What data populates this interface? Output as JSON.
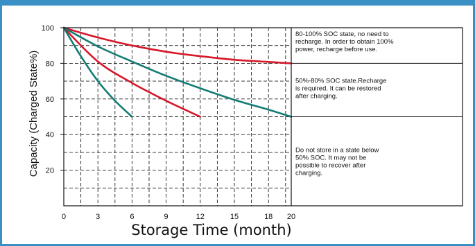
{
  "chart_data": {
    "type": "line",
    "title": "",
    "xlabel": "Storage Time (month)",
    "ylabel": "Capacity (Charged State%)",
    "xlim": [
      0,
      20
    ],
    "ylim": [
      0,
      100
    ],
    "x_ticks": [
      0,
      3,
      6,
      9,
      12,
      15,
      18,
      20
    ],
    "y_ticks": [
      20,
      40,
      60,
      80,
      100
    ],
    "grid": true,
    "legend": "none",
    "colors": {
      "red": "#d6182a",
      "teal": "#127c74"
    },
    "series": [
      {
        "color": "red",
        "x": [
          0,
          3,
          6,
          9,
          12,
          15,
          18,
          20
        ],
        "y": [
          100,
          94.5,
          90,
          86.5,
          84,
          82,
          80.8,
          80
        ]
      },
      {
        "color": "teal",
        "x": [
          0,
          3,
          6,
          9,
          12,
          15,
          18,
          20
        ],
        "y": [
          100,
          89.5,
          81,
          73,
          66,
          59.5,
          54,
          50
        ]
      },
      {
        "color": "red",
        "x": [
          0,
          3,
          6,
          9,
          12
        ],
        "y": [
          100,
          81,
          69,
          59,
          50
        ]
      },
      {
        "color": "teal",
        "x": [
          0,
          1.5,
          3,
          4.5,
          6
        ],
        "y": [
          100,
          84,
          70,
          59,
          50
        ]
      }
    ],
    "annotations": [
      {
        "id": "zone-high",
        "lines": [
          "80-100% SOC state, no need to",
          "recharge. In order to obtain 100%",
          "power, recharge before use."
        ]
      },
      {
        "id": "zone-mid",
        "lines": [
          "50%-80% SOC state.Recharge",
          "is required. It can be restored",
          "after charging."
        ]
      },
      {
        "id": "zone-low",
        "lines": [
          "Do not store in a state below",
          "50% SOC. It may not be",
          "possible to recover after",
          "charging."
        ]
      }
    ]
  }
}
